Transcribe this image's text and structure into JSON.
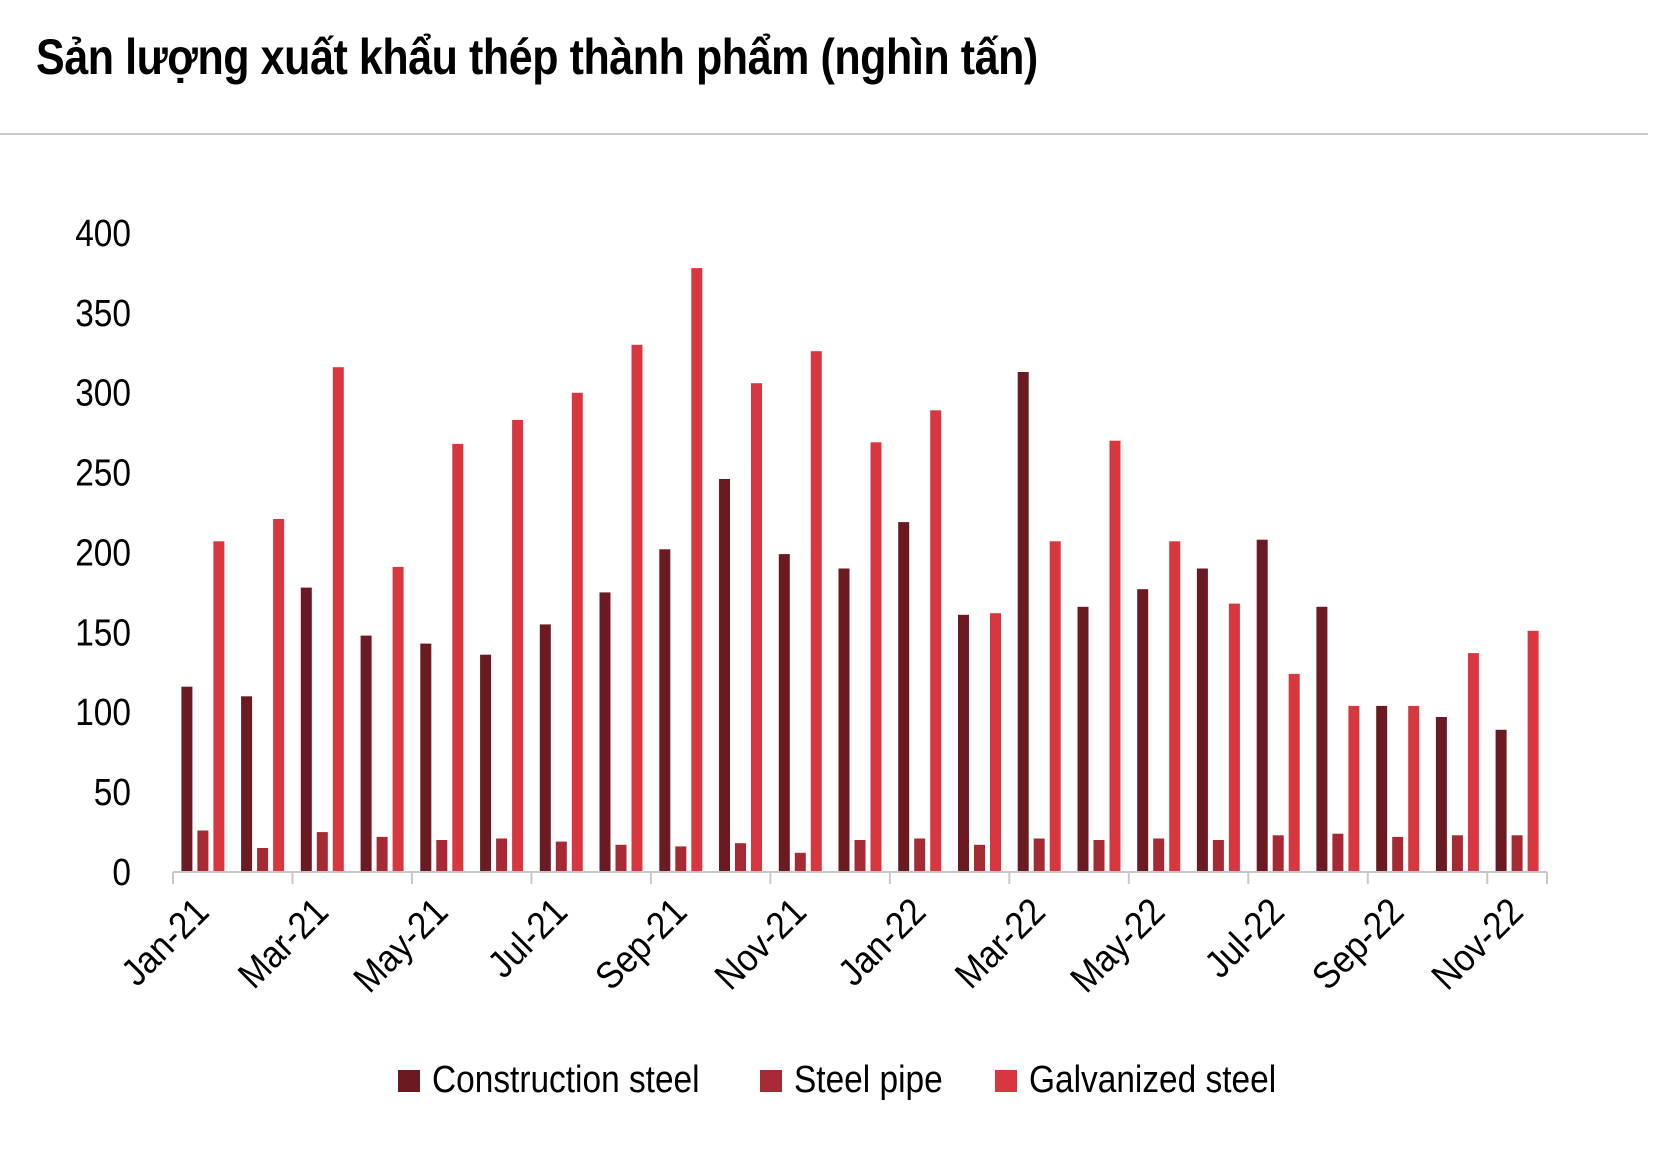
{
  "chart_data": {
    "type": "bar",
    "title": "Sản lượng xuất khẩu thép thành phẩm (nghìn tấn)",
    "categories": [
      "Jan-21",
      "Feb-21",
      "Mar-21",
      "Apr-21",
      "May-21",
      "Jun-21",
      "Jul-21",
      "Aug-21",
      "Sep-21",
      "Oct-21",
      "Nov-21",
      "Dec-21",
      "Jan-22",
      "Feb-22",
      "Mar-22",
      "Apr-22",
      "May-22",
      "Jun-22",
      "Jul-22",
      "Aug-22",
      "Sep-22",
      "Oct-22",
      "Nov-22"
    ],
    "x_tick_labels": [
      "Jan-21",
      "Mar-21",
      "May-21",
      "Jul-21",
      "Sep-21",
      "Nov-21",
      "Jan-22",
      "Mar-22",
      "May-22",
      "Jul-22",
      "Sep-22",
      "Nov-22"
    ],
    "y_ticks": [
      "0",
      "50",
      "100",
      "150",
      "200",
      "250",
      "300",
      "350",
      "400"
    ],
    "ylim": [
      0,
      400
    ],
    "legend_position": "bottom",
    "grid": false,
    "series": [
      {
        "name": "Construction steel",
        "color": "#6b1a22",
        "values": [
          116,
          110,
          178,
          148,
          143,
          136,
          155,
          175,
          202,
          246,
          199,
          190,
          219,
          161,
          313,
          166,
          177,
          190,
          208,
          166,
          104,
          97,
          89
        ]
      },
      {
        "name": "Steel pipe",
        "color": "#a52a33",
        "values": [
          26,
          15,
          25,
          22,
          20,
          21,
          19,
          17,
          16,
          18,
          12,
          20,
          21,
          17,
          21,
          20,
          21,
          20,
          23,
          24,
          22,
          23,
          23
        ]
      },
      {
        "name": "Galvanized steel",
        "color": "#d9373f",
        "values": [
          207,
          221,
          316,
          191,
          268,
          283,
          300,
          330,
          378,
          306,
          326,
          269,
          289,
          162,
          207,
          270,
          207,
          168,
          124,
          104,
          104,
          137,
          151
        ]
      }
    ]
  }
}
